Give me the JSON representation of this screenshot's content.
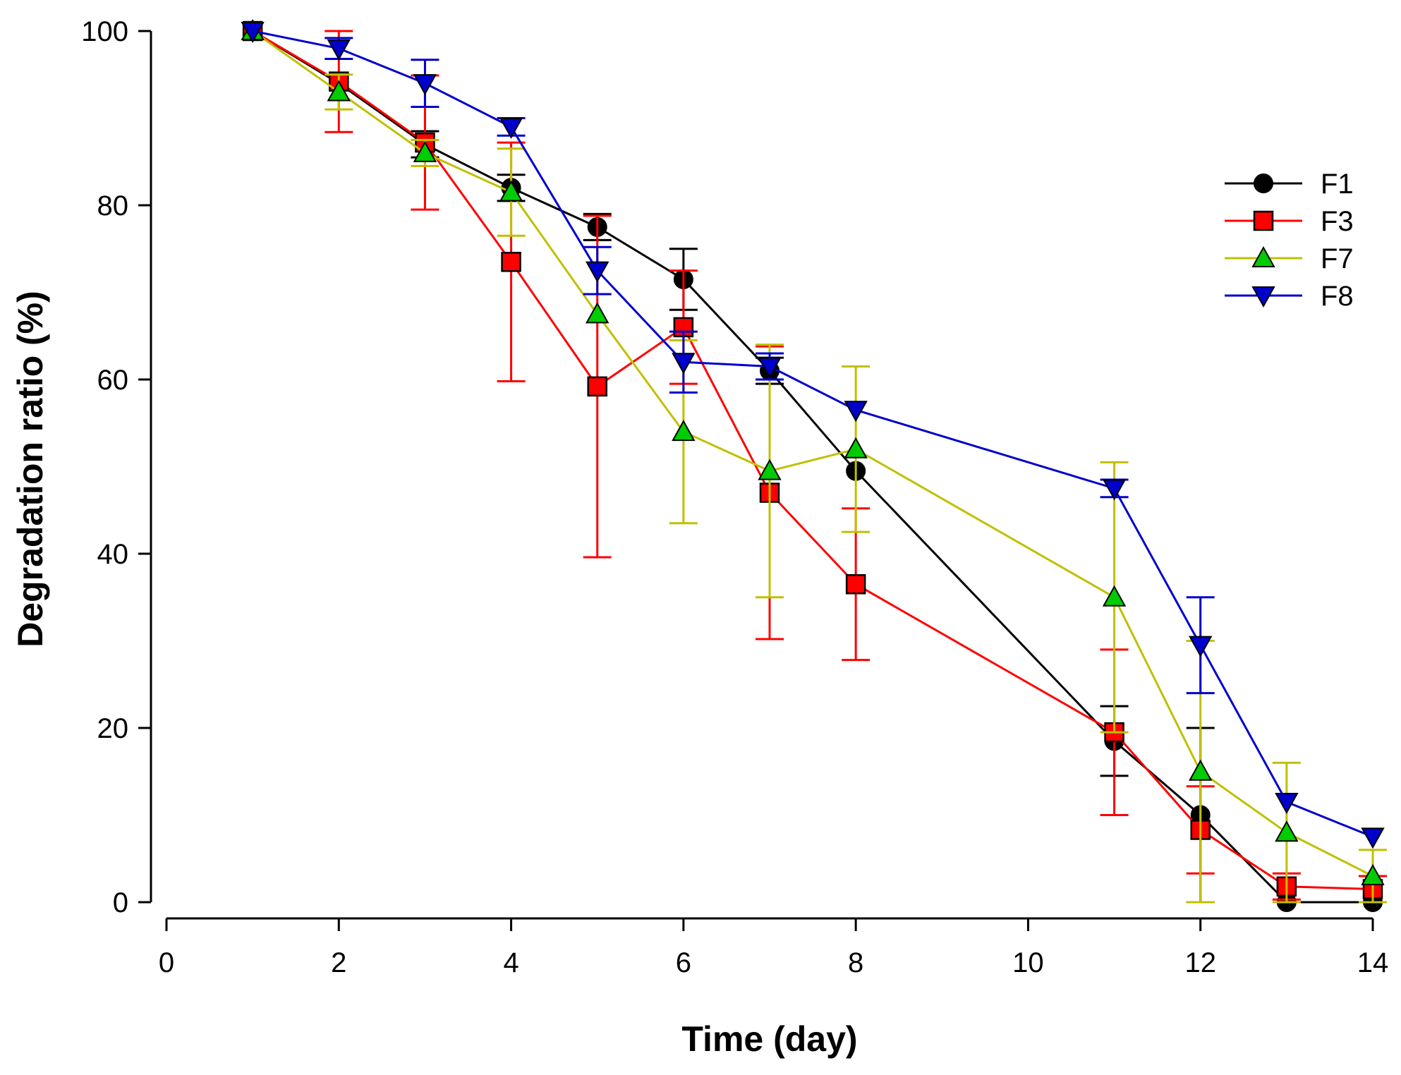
{
  "chart_data": {
    "type": "line",
    "title": "",
    "xlabel": "Time (day)",
    "ylabel": "Degradation ratio (%)",
    "xlim": [
      0,
      14
    ],
    "ylim": [
      0,
      100
    ],
    "xticks": [
      0,
      2,
      4,
      6,
      8,
      10,
      12,
      14
    ],
    "yticks": [
      0,
      20,
      40,
      60,
      80,
      100
    ],
    "xtick_labels": [
      "0",
      "2",
      "4",
      "6",
      "8",
      "10",
      "12",
      "14"
    ],
    "ytick_labels": [
      "0",
      "20",
      "40",
      "60",
      "80",
      "100"
    ],
    "grid": false,
    "legend_position": "top-right",
    "x": [
      1,
      2,
      3,
      4,
      5,
      6,
      7,
      8,
      11,
      12,
      13,
      14
    ],
    "series": [
      {
        "name": "F1",
        "color": "#000000",
        "marker_fill": "#000000",
        "marker": "circle",
        "values": [
          100,
          94,
          87,
          82,
          77.5,
          71.5,
          61,
          49.5,
          18.5,
          10,
          0,
          0
        ],
        "errors": [
          0,
          0,
          1.5,
          1.5,
          1.5,
          3.5,
          1.5,
          0,
          4,
          10,
          0,
          0
        ]
      },
      {
        "name": "F3",
        "color": "#ff0000",
        "marker_fill": "#ff0000",
        "marker": "square",
        "values": [
          100,
          94.2,
          87.2,
          73.5,
          59.2,
          66,
          47,
          36.5,
          19.5,
          8.3,
          1.8,
          1.5
        ],
        "errors": [
          0,
          5.8,
          7.7,
          13.7,
          19.6,
          6.5,
          16.8,
          8.7,
          9.5,
          5,
          1.5,
          1.5
        ]
      },
      {
        "name": "F7",
        "color": "#c0c000",
        "marker_fill": "#00cc00",
        "marker": "triangle-up",
        "values": [
          100,
          93,
          86,
          81.5,
          67.5,
          54,
          49.5,
          52,
          35,
          15,
          8,
          3
        ],
        "errors": [
          0,
          2,
          1.5,
          5,
          0,
          10.5,
          14.5,
          9.5,
          15.5,
          15,
          8,
          3
        ]
      },
      {
        "name": "F8",
        "color": "#0000cc",
        "marker_fill": "#0000cc",
        "marker": "triangle-down",
        "values": [
          100,
          98,
          94,
          89,
          72.5,
          62,
          61.5,
          56.5,
          47.5,
          29.5,
          11.5,
          7.5
        ],
        "errors": [
          0,
          1.2,
          2.7,
          1,
          2.7,
          3.5,
          1.5,
          0,
          1,
          5.5,
          0,
          0
        ]
      }
    ]
  }
}
